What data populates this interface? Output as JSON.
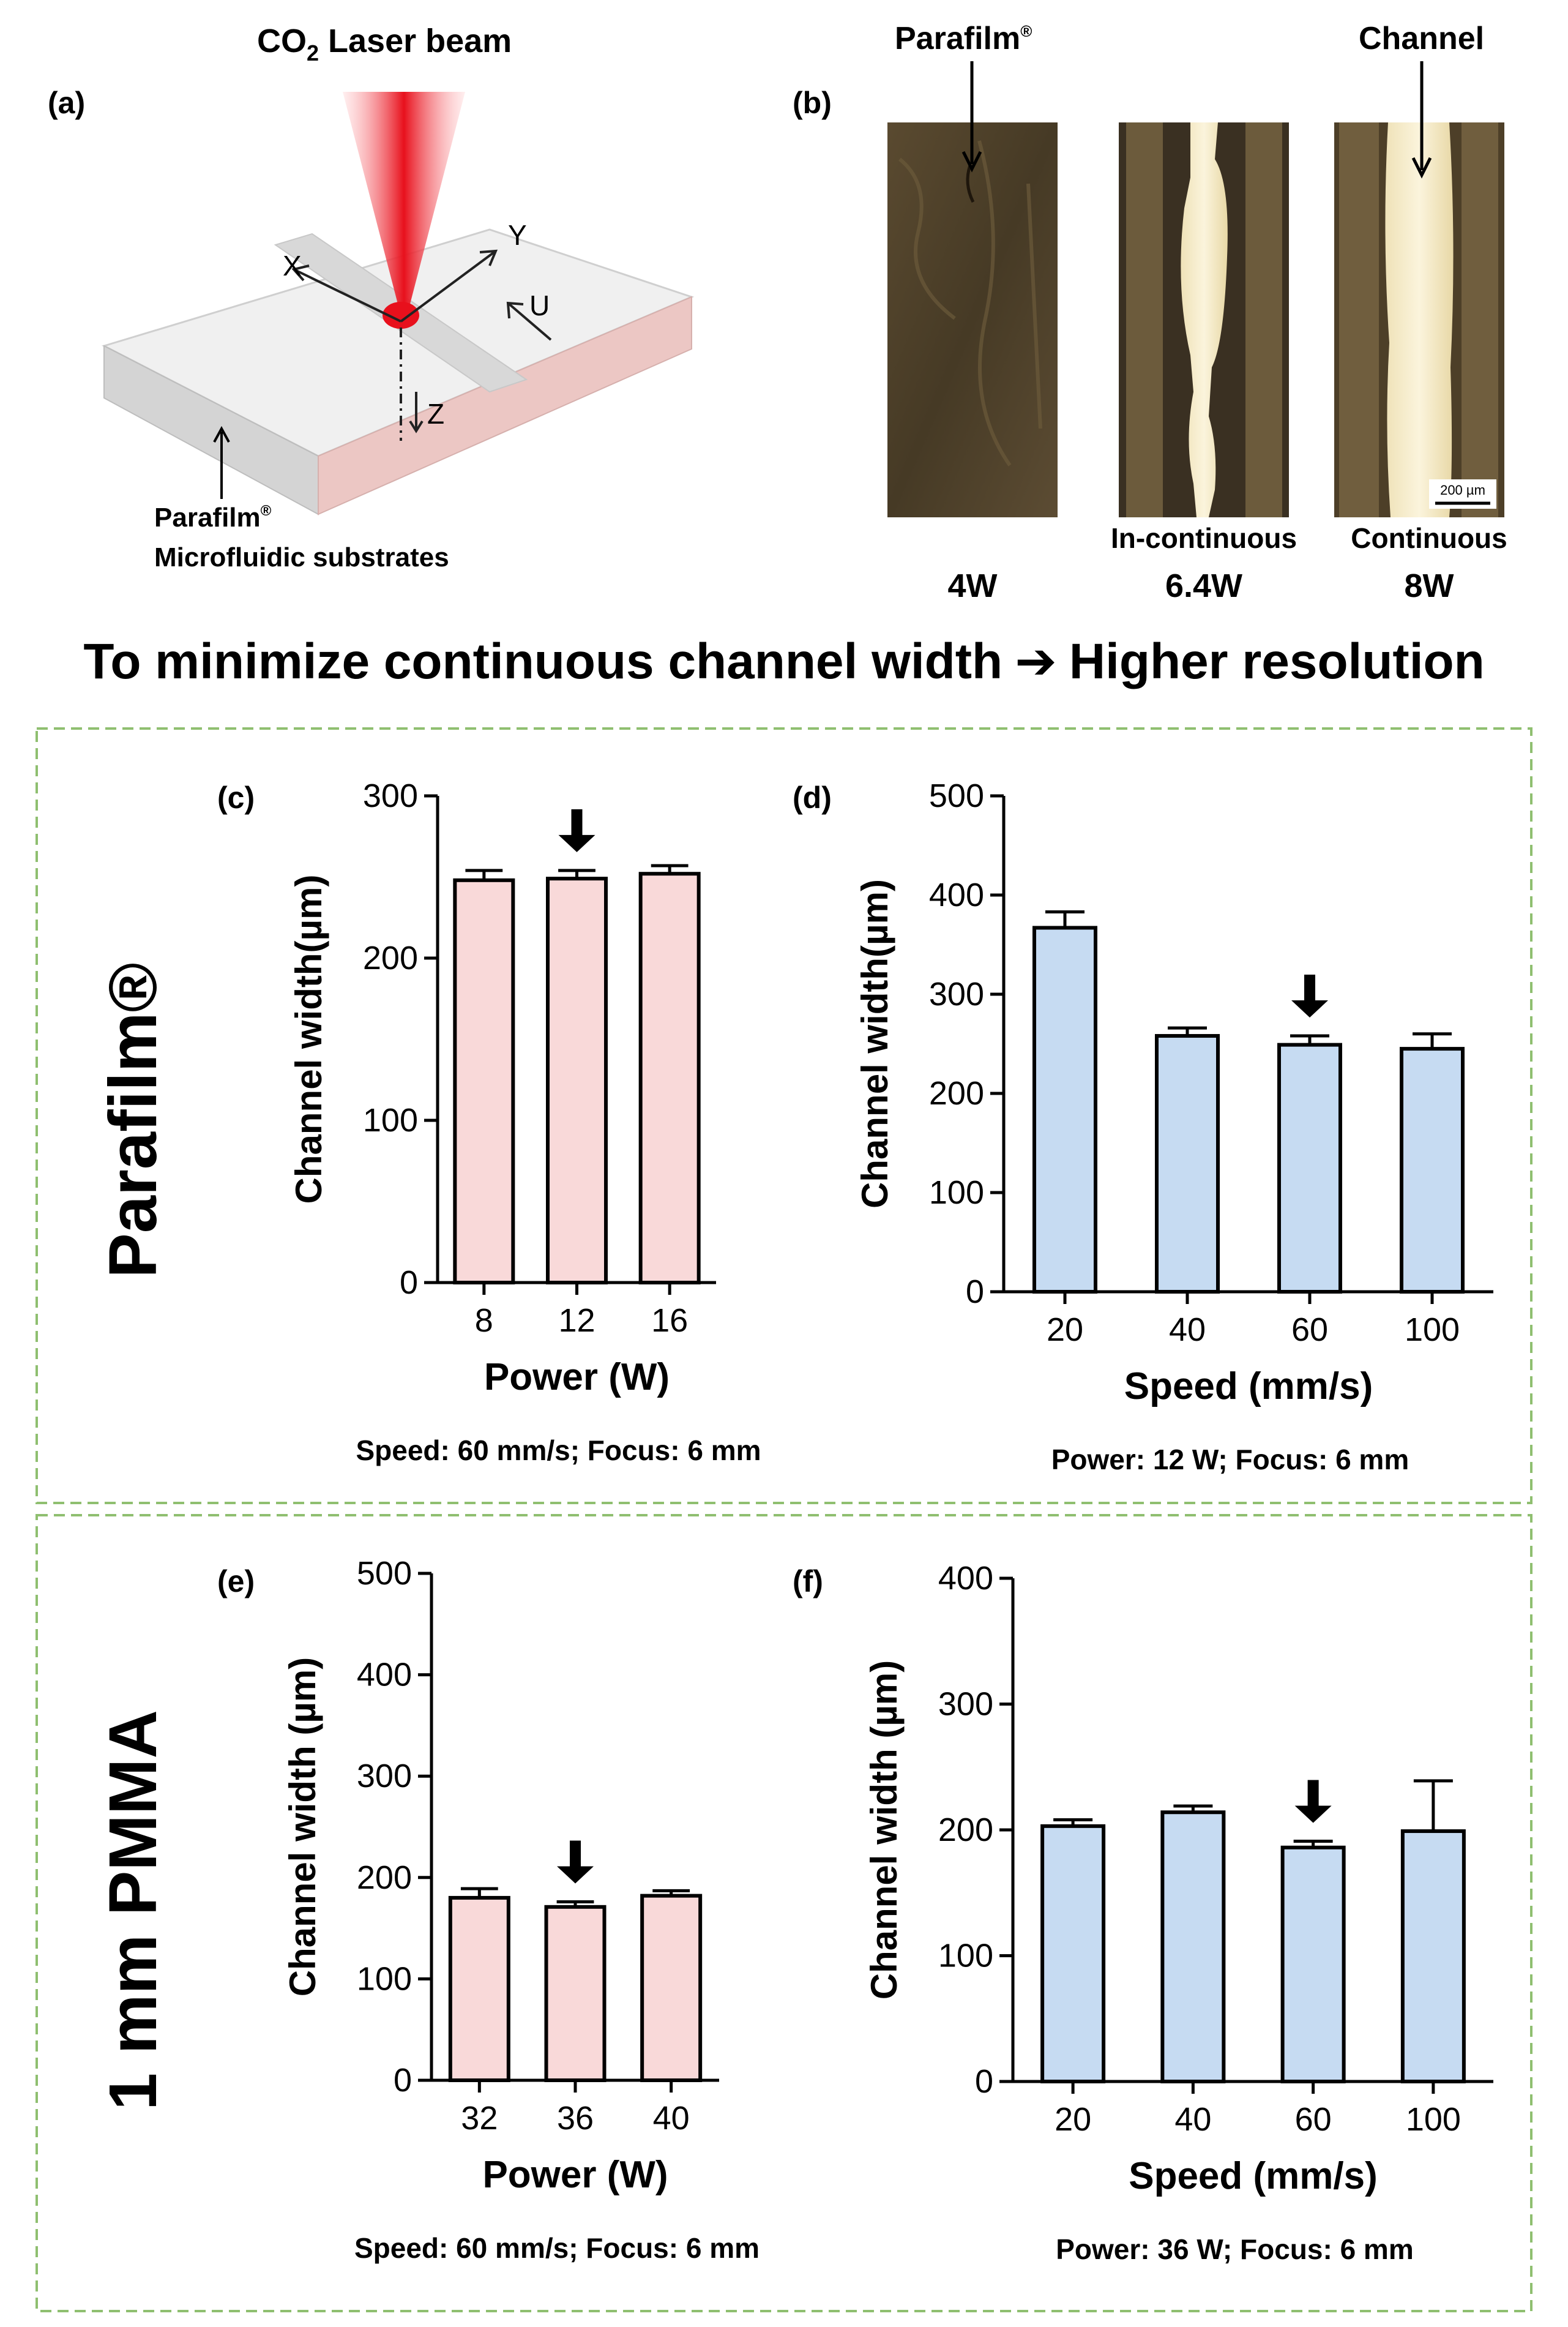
{
  "panel_a": {
    "label": "(a)",
    "laser_title_prefix": "CO",
    "laser_title_sub": "2",
    "laser_title_suffix": " Laser beam",
    "axis_x": "X",
    "axis_y": "Y",
    "axis_z": "Z",
    "axis_u": "U",
    "substrate_name": "Parafilm",
    "substrate_mark": "®",
    "substrate_desc": "Microfluidic substrates"
  },
  "panel_b": {
    "label": "(b)",
    "top_left_label": "Parafilm",
    "top_left_mark": "®",
    "top_right_label": "Channel",
    "scale_bar": "200 µm",
    "images": [
      {
        "state": "",
        "power": "4W"
      },
      {
        "state": "In-continuous",
        "power": "6.4W"
      },
      {
        "state": "Continuous",
        "power": "8W"
      }
    ]
  },
  "headline": {
    "left": "To minimize continuous channel width",
    "arrow": "➔",
    "right": "Higher resolution"
  },
  "row_labels": {
    "parafilm": "Parafilm®",
    "pmma": "1 mm PMMA"
  },
  "colors": {
    "pink_fill": "#f9d9d9",
    "blue_fill": "#c6dbf2",
    "dash_border": "#8fbf70",
    "laser_red": "#e8101c"
  },
  "chart_data": [
    {
      "id": "c",
      "panel_label": "(c)",
      "type": "bar",
      "categories": [
        "8",
        "12",
        "16"
      ],
      "values": [
        248,
        249,
        252
      ],
      "errors": [
        6,
        5,
        5
      ],
      "ylim": [
        0,
        300
      ],
      "yticks": [
        "0",
        "100",
        "200",
        "300"
      ],
      "ylabel": "Channel width(µm)",
      "xlabel": "Power (W)",
      "caption": "Speed: 60 mm/s; Focus: 6 mm",
      "marked_category": "12",
      "marker": "🡇",
      "color": "pink"
    },
    {
      "id": "d",
      "panel_label": "(d)",
      "type": "bar",
      "categories": [
        "20",
        "40",
        "60",
        "100"
      ],
      "values": [
        367,
        258,
        249,
        245
      ],
      "errors": [
        16,
        8,
        9,
        15
      ],
      "ylim": [
        0,
        500
      ],
      "yticks": [
        "0",
        "100",
        "200",
        "300",
        "400",
        "500"
      ],
      "ylabel": "Channel width(µm)",
      "xlabel": "Speed (mm/s)",
      "caption": "Power: 12 W; Focus: 6 mm",
      "marked_category": "60",
      "marker": "🡇",
      "color": "blue"
    },
    {
      "id": "e",
      "panel_label": "(e)",
      "type": "bar",
      "categories": [
        "32",
        "36",
        "40"
      ],
      "values": [
        180,
        171,
        182
      ],
      "errors": [
        9,
        5,
        5
      ],
      "ylim": [
        0,
        500
      ],
      "yticks": [
        "0",
        "100",
        "200",
        "300",
        "400",
        "500"
      ],
      "ylabel": "Channel width (µm)",
      "xlabel": "Power (W)",
      "caption": "Speed: 60 mm/s; Focus: 6 mm",
      "marked_category": "36",
      "marker": "🡇",
      "color": "pink"
    },
    {
      "id": "f",
      "panel_label": "(f)",
      "type": "bar",
      "categories": [
        "20",
        "40",
        "60",
        "100"
      ],
      "values": [
        203,
        214,
        186,
        199
      ],
      "errors": [
        5,
        5,
        5,
        40
      ],
      "ylim": [
        0,
        400
      ],
      "yticks": [
        "0",
        "100",
        "200",
        "300",
        "400"
      ],
      "ylabel": "Channel width (µm)",
      "xlabel": "Speed (mm/s)",
      "caption": "Power: 36 W; Focus: 6 mm",
      "marked_category": "60",
      "marker": "🡇",
      "color": "blue"
    }
  ]
}
